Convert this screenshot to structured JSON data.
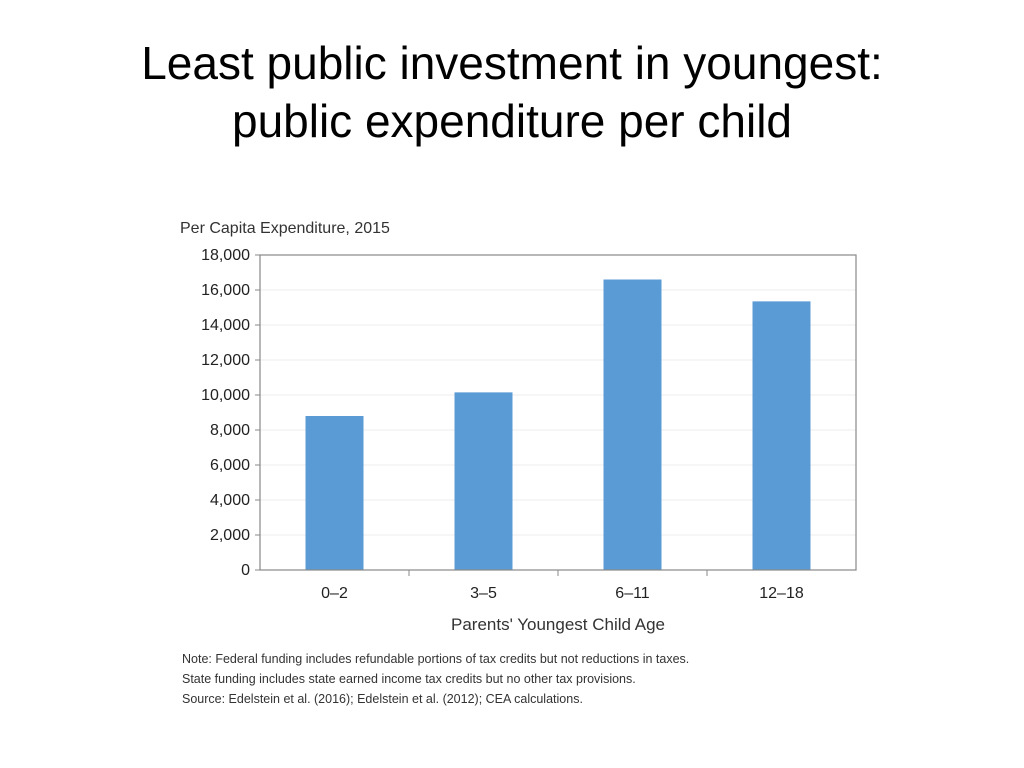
{
  "slide": {
    "title_line1": "Least public investment in youngest:",
    "title_line2": "public expenditure per child"
  },
  "chart_data": {
    "type": "bar",
    "title": "Per Capita Expenditure, 2015",
    "xlabel": "Parents' Youngest Child Age",
    "ylabel": "",
    "categories": [
      "0–2",
      "3–5",
      "6–11",
      "12–18"
    ],
    "values": [
      8800,
      10150,
      16600,
      15350
    ],
    "ylim": [
      0,
      18000
    ],
    "yticks": [
      0,
      2000,
      4000,
      6000,
      8000,
      10000,
      12000,
      14000,
      16000,
      18000
    ],
    "ytick_labels": [
      "0",
      "2,000",
      "4,000",
      "6,000",
      "8,000",
      "10,000",
      "12,000",
      "14,000",
      "16,000",
      "18,000"
    ],
    "grid": true,
    "bar_color": "#5b9bd5",
    "notes": [
      "Note:  Federal funding includes refundable portions of tax credits but not reductions in taxes.",
      "State funding includes state earned income tax credits but no other tax provisions.",
      "Source:  Edelstein et al. (2016); Edelstein et al. (2012); CEA calculations."
    ]
  }
}
